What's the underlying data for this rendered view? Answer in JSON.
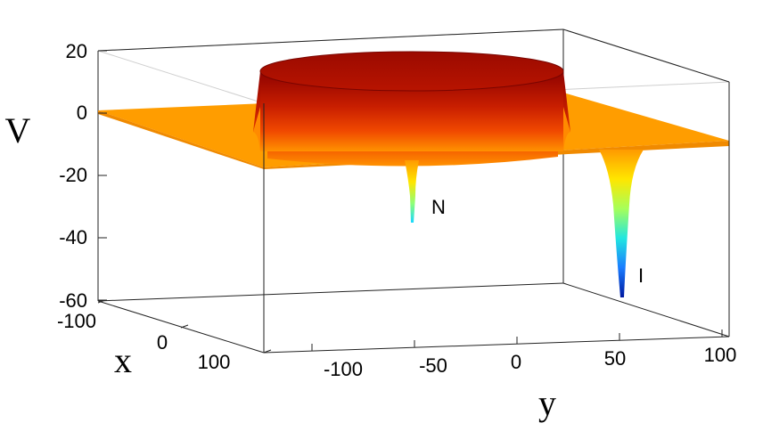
{
  "chart_data": {
    "type": "surface3d",
    "title": "",
    "xlabel": "x",
    "ylabel": "y",
    "zlabel": "V",
    "xlim": [
      -100,
      100
    ],
    "ylim": [
      -100,
      100
    ],
    "zlim": [
      -60,
      20
    ],
    "x_ticks": [
      "-100",
      "0",
      "100"
    ],
    "y_ticks": [
      "-100",
      "-50",
      "0",
      "50",
      "100"
    ],
    "z_ticks": [
      "20",
      "0",
      "-20",
      "-40",
      "-60"
    ],
    "colormap": "jet",
    "baseline_level": 0,
    "plateau": {
      "height": 20,
      "radius": 50,
      "center_x": 0,
      "center_y": 0
    },
    "wells": [
      {
        "label": "N",
        "depth": -35,
        "y": -45
      },
      {
        "label": "I",
        "depth": -60,
        "y": 40
      }
    ],
    "annotations": [
      "N",
      "I"
    ]
  }
}
